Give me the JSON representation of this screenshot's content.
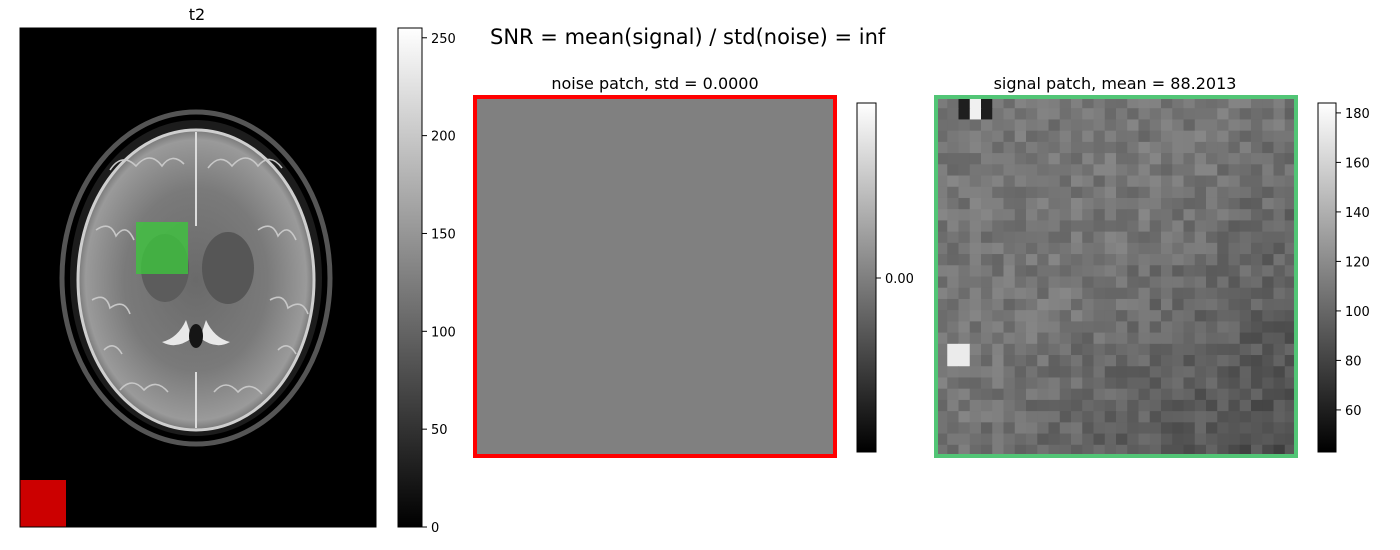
{
  "suptitle": "SNR = mean(signal) / std(noise) = inf",
  "colors": {
    "noise_box": "#ff0000",
    "noise_fill": "#cc0000",
    "signal_box": "#52c576",
    "signal_fill": "#3cc63c"
  },
  "chart_data": [
    {
      "type": "heatmap",
      "title": "t2",
      "content": "axial T2-weighted brain MRI slice, grayscale",
      "colormap": "gray",
      "colorbar": {
        "ticks": [
          0,
          50,
          100,
          150,
          200,
          250
        ],
        "range": [
          0,
          255
        ]
      },
      "overlays": [
        {
          "name": "signal",
          "color": "green"
        },
        {
          "name": "noise",
          "color": "red"
        }
      ]
    },
    {
      "type": "heatmap",
      "title": "noise patch, std = 0.0000",
      "colormap": "gray",
      "uniform_value": 0.0,
      "border_color": "red",
      "colorbar": {
        "ticks": [
          0.0
        ],
        "tick_labels": [
          "0.00"
        ]
      }
    },
    {
      "type": "heatmap",
      "title": "signal patch, mean = 88.2013",
      "colormap": "gray",
      "grid": [
        32,
        32
      ],
      "border_color": "green",
      "colorbar": {
        "ticks": [
          60,
          80,
          100,
          120,
          140,
          160,
          180
        ],
        "range": [
          43,
          184
        ]
      }
    }
  ]
}
